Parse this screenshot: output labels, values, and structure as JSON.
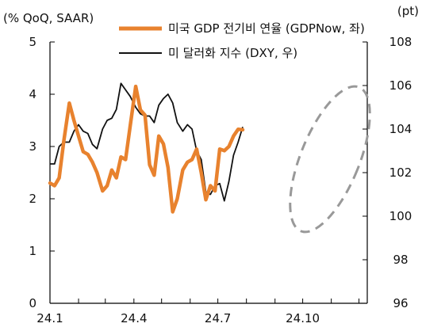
{
  "chart_data": {
    "type": "line",
    "left_unit": "(% QoQ, SAAR)",
    "right_unit": "(pt)",
    "x_tick_labels": [
      "24.1",
      "24.4",
      "24.7",
      "24.10"
    ],
    "y_left_ticks": [
      0,
      1,
      2,
      3,
      4,
      5
    ],
    "y_right_ticks": [
      96,
      98,
      100,
      102,
      104,
      106,
      108
    ],
    "y_left_range": [
      0,
      5
    ],
    "y_right_range": [
      96,
      108
    ],
    "grid": false,
    "legend_position": "top",
    "annotation": "dashed gray ellipse highlighting the latest period (late Oct to Nov)",
    "series": [
      {
        "name": "미국 GDP 전기비 연율 (GDPNow, 좌)",
        "axis": "left",
        "color": "#E8822E",
        "points": [
          [
            "2024-01-01",
            2.3
          ],
          [
            "2024-01-06",
            2.25
          ],
          [
            "2024-01-11",
            2.4
          ],
          [
            "2024-01-16",
            3.1
          ],
          [
            "2024-01-22",
            3.83
          ],
          [
            "2024-01-27",
            3.5
          ],
          [
            "2024-02-01",
            3.2
          ],
          [
            "2024-02-06",
            2.9
          ],
          [
            "2024-02-11",
            2.85
          ],
          [
            "2024-02-16",
            2.7
          ],
          [
            "2024-02-21",
            2.5
          ],
          [
            "2024-02-27",
            2.15
          ],
          [
            "2024-03-03",
            2.25
          ],
          [
            "2024-03-08",
            2.55
          ],
          [
            "2024-03-13",
            2.4
          ],
          [
            "2024-03-18",
            2.8
          ],
          [
            "2024-03-23",
            2.75
          ],
          [
            "2024-03-28",
            3.4
          ],
          [
            "2024-04-03",
            4.15
          ],
          [
            "2024-04-08",
            3.7
          ],
          [
            "2024-04-13",
            3.6
          ],
          [
            "2024-04-18",
            2.65
          ],
          [
            "2024-04-23",
            2.45
          ],
          [
            "2024-04-28",
            3.2
          ],
          [
            "2024-05-03",
            3.05
          ],
          [
            "2024-05-08",
            2.6
          ],
          [
            "2024-05-13",
            1.75
          ],
          [
            "2024-05-18",
            2.0
          ],
          [
            "2024-05-24",
            2.55
          ],
          [
            "2024-05-29",
            2.7
          ],
          [
            "2024-06-03",
            2.75
          ],
          [
            "2024-06-08",
            2.95
          ],
          [
            "2024-06-13",
            2.5
          ],
          [
            "2024-06-18",
            1.98
          ],
          [
            "2024-06-23",
            2.25
          ],
          [
            "2024-06-28",
            2.15
          ],
          [
            "2024-07-03",
            2.95
          ],
          [
            "2024-07-08",
            2.92
          ],
          [
            "2024-07-13",
            3.0
          ],
          [
            "2024-07-18",
            3.2
          ],
          [
            "2024-07-23",
            3.33
          ],
          [
            "2024-07-28",
            3.32
          ]
        ]
      },
      {
        "name": "미 달러화 지수 (DXY, 우)",
        "axis": "right",
        "color": "#111111",
        "points": [
          [
            "2024-01-01",
            102.4
          ],
          [
            "2024-01-06",
            102.4
          ],
          [
            "2024-01-11",
            103.2
          ],
          [
            "2024-01-16",
            103.4
          ],
          [
            "2024-01-22",
            103.4
          ],
          [
            "2024-01-27",
            103.9
          ],
          [
            "2024-02-01",
            104.2
          ],
          [
            "2024-02-06",
            103.9
          ],
          [
            "2024-02-11",
            103.8
          ],
          [
            "2024-02-16",
            103.3
          ],
          [
            "2024-02-21",
            103.1
          ],
          [
            "2024-02-27",
            104.0
          ],
          [
            "2024-03-03",
            104.4
          ],
          [
            "2024-03-08",
            104.5
          ],
          [
            "2024-03-13",
            104.9
          ],
          [
            "2024-03-18",
            106.1
          ],
          [
            "2024-03-23",
            105.8
          ],
          [
            "2024-03-28",
            105.5
          ],
          [
            "2024-04-03",
            105.0
          ],
          [
            "2024-04-08",
            104.7
          ],
          [
            "2024-04-13",
            104.6
          ],
          [
            "2024-04-18",
            104.6
          ],
          [
            "2024-04-23",
            104.3
          ],
          [
            "2024-04-28",
            105.1
          ],
          [
            "2024-05-03",
            105.4
          ],
          [
            "2024-05-08",
            105.6
          ],
          [
            "2024-05-13",
            105.2
          ],
          [
            "2024-05-18",
            104.3
          ],
          [
            "2024-05-24",
            103.9
          ],
          [
            "2024-05-29",
            104.2
          ],
          [
            "2024-06-03",
            104.0
          ],
          [
            "2024-06-08",
            103.0
          ],
          [
            "2024-06-13",
            102.6
          ],
          [
            "2024-06-18",
            101.1
          ],
          [
            "2024-06-23",
            101.0
          ],
          [
            "2024-06-28",
            101.4
          ],
          [
            "2024-07-03",
            101.5
          ],
          [
            "2024-07-08",
            100.7
          ],
          [
            "2024-07-13",
            101.6
          ],
          [
            "2024-07-18",
            102.8
          ],
          [
            "2024-07-23",
            103.4
          ],
          [
            "2024-07-28",
            104.1
          ]
        ]
      }
    ]
  }
}
